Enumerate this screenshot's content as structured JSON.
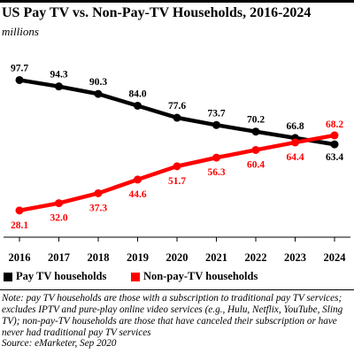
{
  "header": {
    "title": "US Pay TV vs. Non-Pay-TV Households, 2016-2024",
    "subtitle": "millions"
  },
  "chart_data": {
    "type": "line",
    "title": "US Pay TV vs. Non-Pay-TV Households, 2016-2024",
    "subtitle": "millions",
    "xlabel": "",
    "ylabel": "",
    "categories": [
      "2016",
      "2017",
      "2018",
      "2019",
      "2020",
      "2021",
      "2022",
      "2023",
      "2024"
    ],
    "series": [
      {
        "name": "Pay TV households",
        "color": "#000000",
        "values": [
          97.7,
          94.3,
          90.3,
          84.0,
          77.6,
          73.7,
          70.2,
          66.8,
          63.4
        ],
        "labels": [
          "97.7",
          "94.3",
          "90.3",
          "84.0",
          "77.6",
          "73.7",
          "70.2",
          "66.8",
          "63.4"
        ]
      },
      {
        "name": "Non-pay-TV households",
        "color": "#ff0000",
        "values": [
          28.1,
          32.0,
          37.3,
          44.6,
          51.7,
          56.3,
          60.4,
          64.4,
          68.2
        ],
        "labels": [
          "28.1",
          "32.0",
          "37.3",
          "44.6",
          "51.7",
          "56.3",
          "60.4",
          "64.4",
          "68.2"
        ]
      }
    ],
    "ylim": [
      20,
      105
    ],
    "grid": false,
    "legend_position": "bottom"
  },
  "footer": {
    "note": "Note: pay TV households are those with a subscription to traditional pay TV services; excludes IPTV and pure-play online video services (e.g., Hulu, Netflix, YouTube, Sling TV); non-pay-TV households are those that have canceled their subscription or have never had traditional pay TV services",
    "source": "Source: eMarketer, Sep 2020"
  }
}
